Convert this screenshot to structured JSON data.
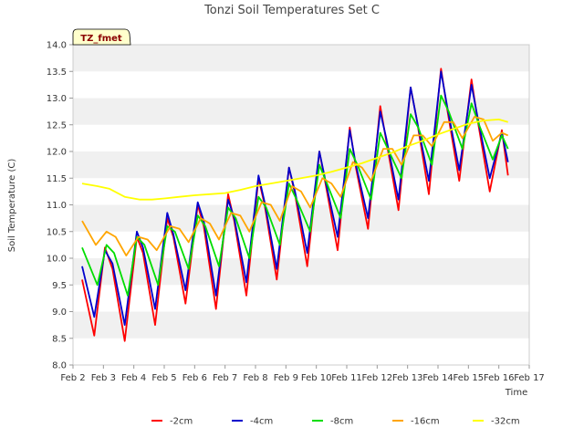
{
  "chart_data": {
    "type": "line",
    "title": "Tonzi Soil Temperatures Set C",
    "xlabel": "Time",
    "ylabel": "Soil Temperature (C)",
    "badge": "TZ_fmet",
    "ylim": [
      8.0,
      14.0
    ],
    "xlim": [
      2,
      17
    ],
    "yticks": [
      "8.0",
      "8.5",
      "9.0",
      "9.5",
      "10.0",
      "10.5",
      "11.0",
      "11.5",
      "12.0",
      "12.5",
      "13.0",
      "13.5",
      "14.0"
    ],
    "xticks": [
      "Feb 2",
      "Feb 3",
      "Feb 4",
      "Feb 5",
      "Feb 6",
      "Feb 7",
      "Feb 8",
      "Feb 9",
      "Feb 10",
      "Feb 11",
      "Feb 12",
      "Feb 13",
      "Feb 14",
      "Feb 15",
      "Feb 16",
      "Feb 17"
    ],
    "grid": "horizontal bands",
    "legend_position": "bottom",
    "series": [
      {
        "name": "-2cm",
        "color": "#ff0000",
        "x": [
          2.3,
          2.7,
          3.05,
          3.3,
          3.7,
          4.1,
          4.3,
          4.7,
          5.1,
          5.3,
          5.7,
          6.1,
          6.3,
          6.7,
          7.1,
          7.3,
          7.7,
          8.1,
          8.3,
          8.7,
          9.1,
          9.3,
          9.7,
          10.1,
          10.3,
          10.7,
          11.1,
          11.3,
          11.7,
          12.1,
          12.3,
          12.7,
          13.1,
          13.3,
          13.7,
          14.1,
          14.3,
          14.7,
          15.1,
          15.3,
          15.7,
          16.1,
          16.3
        ],
        "y": [
          9.6,
          8.55,
          10.2,
          9.8,
          8.45,
          10.4,
          10.1,
          8.75,
          10.75,
          10.4,
          9.15,
          11.0,
          10.6,
          9.05,
          11.2,
          10.7,
          9.3,
          11.5,
          11.0,
          9.6,
          11.7,
          11.2,
          9.85,
          12.0,
          11.4,
          10.15,
          12.45,
          11.7,
          10.55,
          12.85,
          12.2,
          10.9,
          13.2,
          12.6,
          11.2,
          13.55,
          12.8,
          11.45,
          13.35,
          12.6,
          11.25,
          12.4,
          11.55
        ]
      },
      {
        "name": "-4cm",
        "color": "#0000cc",
        "x": [
          2.3,
          2.7,
          3.05,
          3.3,
          3.7,
          4.1,
          4.3,
          4.7,
          5.1,
          5.3,
          5.7,
          6.1,
          6.3,
          6.7,
          7.1,
          7.3,
          7.7,
          8.1,
          8.3,
          8.7,
          9.1,
          9.3,
          9.7,
          10.1,
          10.3,
          10.7,
          11.1,
          11.3,
          11.7,
          12.1,
          12.3,
          12.7,
          13.1,
          13.3,
          13.7,
          14.1,
          14.3,
          14.7,
          15.1,
          15.3,
          15.7,
          16.1,
          16.3
        ],
        "y": [
          9.85,
          8.9,
          10.15,
          9.9,
          8.75,
          10.5,
          10.2,
          9.05,
          10.85,
          10.45,
          9.4,
          11.05,
          10.7,
          9.3,
          11.1,
          10.75,
          9.55,
          11.55,
          11.05,
          9.8,
          11.7,
          11.25,
          10.1,
          12.0,
          11.45,
          10.4,
          12.4,
          11.75,
          10.75,
          12.75,
          12.25,
          11.1,
          13.2,
          12.6,
          11.45,
          13.5,
          12.85,
          11.65,
          13.25,
          12.65,
          11.5,
          12.35,
          11.8
        ]
      },
      {
        "name": "-8cm",
        "color": "#00dd00",
        "x": [
          2.3,
          2.8,
          3.1,
          3.35,
          3.8,
          4.1,
          4.35,
          4.8,
          5.1,
          5.35,
          5.8,
          6.1,
          6.35,
          6.8,
          7.1,
          7.35,
          7.8,
          8.1,
          8.35,
          8.8,
          9.1,
          9.35,
          9.8,
          10.1,
          10.35,
          10.8,
          11.1,
          11.35,
          11.8,
          12.1,
          12.35,
          12.8,
          13.1,
          13.35,
          13.8,
          14.1,
          14.35,
          14.8,
          15.1,
          15.35,
          15.8,
          16.1,
          16.3
        ],
        "y": [
          10.2,
          9.5,
          10.25,
          10.1,
          9.3,
          10.4,
          10.25,
          9.5,
          10.6,
          10.5,
          9.8,
          10.8,
          10.6,
          9.85,
          10.95,
          10.75,
          10.0,
          11.15,
          10.95,
          10.25,
          11.4,
          11.1,
          10.5,
          11.75,
          11.4,
          10.75,
          12.05,
          11.75,
          11.1,
          12.35,
          12.05,
          11.5,
          12.7,
          12.45,
          11.75,
          13.05,
          12.75,
          12.05,
          12.9,
          12.5,
          11.85,
          12.3,
          12.05
        ]
      },
      {
        "name": "-16cm",
        "color": "#ffa500",
        "x": [
          2.3,
          2.75,
          3.1,
          3.4,
          3.75,
          4.15,
          4.45,
          4.75,
          5.2,
          5.5,
          5.8,
          6.2,
          6.5,
          6.8,
          7.2,
          7.5,
          7.8,
          8.2,
          8.5,
          8.8,
          9.2,
          9.5,
          9.8,
          10.2,
          10.5,
          10.8,
          11.2,
          11.5,
          11.8,
          12.2,
          12.5,
          12.8,
          13.2,
          13.5,
          13.8,
          14.2,
          14.5,
          14.8,
          15.2,
          15.5,
          15.8,
          16.1,
          16.3
        ],
        "y": [
          10.7,
          10.25,
          10.5,
          10.4,
          10.05,
          10.4,
          10.35,
          10.15,
          10.6,
          10.55,
          10.3,
          10.75,
          10.65,
          10.35,
          10.85,
          10.8,
          10.5,
          11.05,
          11.0,
          10.7,
          11.35,
          11.25,
          10.95,
          11.5,
          11.4,
          11.15,
          11.8,
          11.7,
          11.45,
          12.05,
          12.05,
          11.75,
          12.3,
          12.3,
          12.1,
          12.55,
          12.55,
          12.25,
          12.65,
          12.6,
          12.2,
          12.35,
          12.3
        ]
      },
      {
        "name": "-32cm",
        "color": "#ffff00",
        "x": [
          2.3,
          2.8,
          3.2,
          3.7,
          4.2,
          4.6,
          5.0,
          5.5,
          6.0,
          6.5,
          7.0,
          7.5,
          8.0,
          8.5,
          9.0,
          9.5,
          10.0,
          10.5,
          11.0,
          11.5,
          12.0,
          12.5,
          13.0,
          13.5,
          14.0,
          14.5,
          15.0,
          15.5,
          16.0,
          16.3
        ],
        "y": [
          11.4,
          11.35,
          11.3,
          11.15,
          11.1,
          11.1,
          11.12,
          11.15,
          11.18,
          11.2,
          11.22,
          11.28,
          11.35,
          11.4,
          11.45,
          11.5,
          11.55,
          11.62,
          11.7,
          11.78,
          11.88,
          11.98,
          12.1,
          12.2,
          12.32,
          12.42,
          12.52,
          12.58,
          12.6,
          12.55
        ]
      }
    ]
  }
}
